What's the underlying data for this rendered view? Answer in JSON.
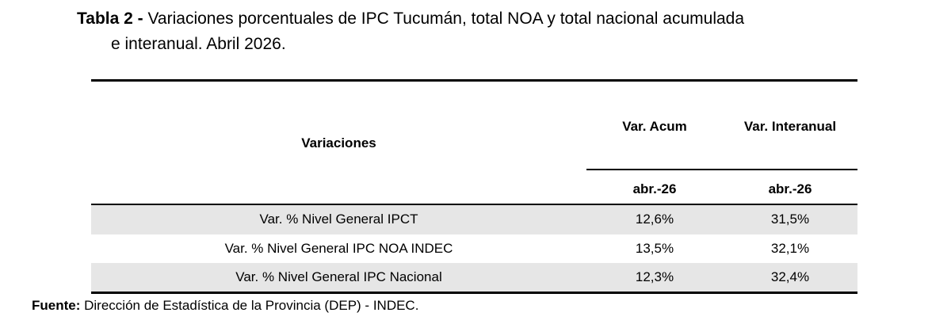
{
  "title": {
    "label": "Tabla 2 -",
    "text_line1": "Variaciones porcentuales de IPC Tucumán, total NOA y total nacional acumulada",
    "text_line2": "e interanual. Abril 2026."
  },
  "table": {
    "header": [
      "Variaciones",
      "Var. Acum",
      "Var. Interanual"
    ],
    "subheader": [
      "abr.-26",
      "abr.-26"
    ],
    "rows": [
      [
        "Var. % Nivel General IPCT",
        "12,6%",
        "31,5%"
      ],
      [
        "Var. % Nivel General IPC NOA INDEC",
        "13,5%",
        "32,1%"
      ],
      [
        "Var. % Nivel General IPC Nacional",
        "12,3%",
        "32,4%"
      ]
    ]
  },
  "source": {
    "label": "Fuente:",
    "text": "Dirección de Estadística de la Provincia (DEP) - INDEC."
  }
}
